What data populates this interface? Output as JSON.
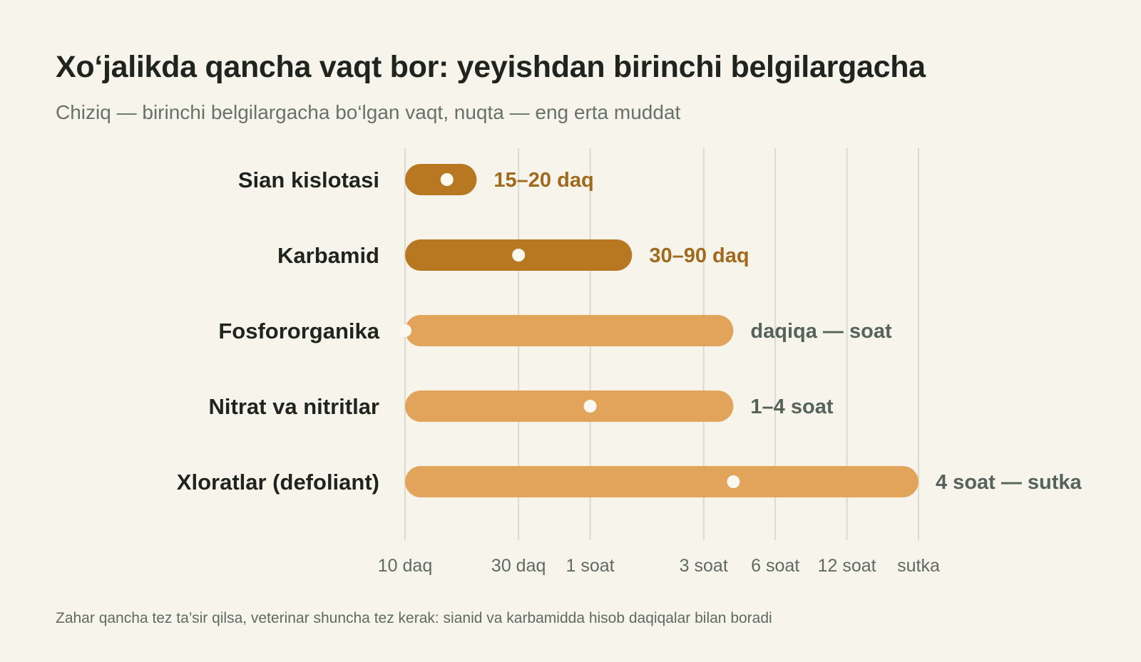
{
  "title": "Xo‘jalikda qancha vaqt bor: yeyishdan birinchi belgilargacha",
  "subtitle": "Chiziq — birinchi belgilargacha bo‘lgan vaqt, nuqta — eng erta muddat",
  "footnote": "Zahar qancha tez ta’sir qilsa, veterinar shuncha tez kerak: sianid va karbamidda hisob daqiqalar bilan boradi",
  "colors": {
    "background": "#f7f4ec",
    "bar_fast": "#b87821",
    "bar_slow": "#e2a45b",
    "dot": "#fbf8f0",
    "label_fast": "#a06a1c",
    "label_slow": "#56635b",
    "grid": "#dcd9cf",
    "title": "#1f241f"
  },
  "chart_data": {
    "type": "range-bar",
    "title": "Xo‘jalikda qancha vaqt bor: yeyishdan birinchi belgilargacha",
    "subtitle": "Chiziq — birinchi belgilargacha bo‘lgan vaqt, nuqta — eng erta muddat",
    "x_scale": "log",
    "x_unit": "minutes",
    "xlim": [
      10,
      1440
    ],
    "ticks": [
      {
        "value": 10,
        "label": "10 daq"
      },
      {
        "value": 30,
        "label": "30 daq"
      },
      {
        "value": 60,
        "label": "1 soat"
      },
      {
        "value": 180,
        "label": "3 soat"
      },
      {
        "value": 360,
        "label": "6 soat"
      },
      {
        "value": 720,
        "label": "12 soat"
      },
      {
        "value": 1440,
        "label": "sutka"
      }
    ],
    "grid": true,
    "rows": [
      {
        "category": "Sian kislotasi",
        "start": 10,
        "end": 20,
        "earliest": 15,
        "value_label": "15–20 daq",
        "tone": "fast"
      },
      {
        "category": "Karbamid",
        "start": 10,
        "end": 90,
        "earliest": 30,
        "value_label": "30–90 daq",
        "tone": "fast"
      },
      {
        "category": "Fosfororganika",
        "start": 10,
        "end": 240,
        "earliest": 10,
        "value_label": "daqiqa — soat",
        "tone": "slow"
      },
      {
        "category": "Nitrat va nitritlar",
        "start": 10,
        "end": 240,
        "earliest": 60,
        "value_label": "1–4 soat",
        "tone": "slow"
      },
      {
        "category": "Xloratlar (defoliant)",
        "start": 10,
        "end": 1440,
        "earliest": 240,
        "value_label": "4 soat — sutka",
        "tone": "slow"
      }
    ]
  }
}
